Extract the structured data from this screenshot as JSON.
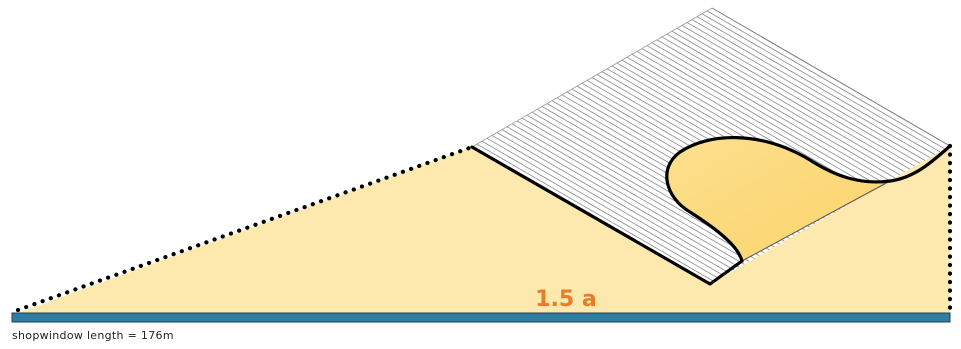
{
  "diagram": {
    "dimension_label": "1.5 a",
    "caption": "shopwindow length = 176m"
  },
  "colors": {
    "background": "#ffffff",
    "site_fill": "#fde9ad",
    "site_outline": "#000000",
    "hatch_line": "#8a8a8a",
    "court_fill": "#fbd97a",
    "court_edge": "#f4c24d",
    "base_bar": "#2f7da0",
    "base_bar_edge": "#1f3f55",
    "label_accent": "#e87b2c"
  }
}
